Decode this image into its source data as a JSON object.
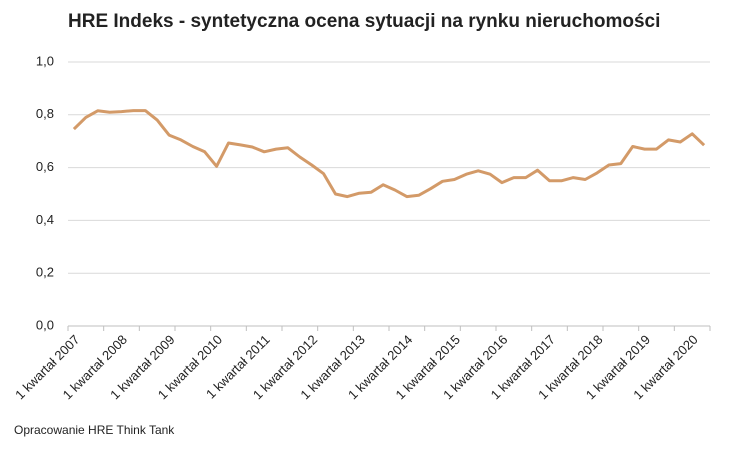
{
  "chart_data": {
    "type": "line",
    "title": "HRE Indeks - syntetyczna ocena sytuacji na rynku nieruchomości",
    "source": "Opracowanie HRE Think Tank",
    "categories": [
      "1 kwartał 2007",
      null,
      null,
      null,
      "1 kwartał 2008",
      null,
      null,
      null,
      "1 kwartał 2009",
      null,
      null,
      null,
      "1 kwartał 2010",
      null,
      null,
      null,
      "1 kwartał 2011",
      null,
      null,
      null,
      "1 kwartał 2012",
      null,
      null,
      null,
      "1 kwartał 2013",
      null,
      null,
      null,
      "1 kwartał 2014",
      null,
      null,
      null,
      "1 kwartał 2015",
      null,
      null,
      null,
      "1 kwartał 2016",
      null,
      null,
      null,
      "1 kwartał 2017",
      null,
      null,
      null,
      "1 kwartał 2018",
      null,
      null,
      null,
      "1 kwartał 2019",
      null,
      null,
      null,
      "1 kwartał 2020",
      null
    ],
    "series": [
      {
        "name": "HRE Indeks",
        "color": "#d39a68",
        "values": [
          0.746,
          0.79,
          0.815,
          0.81,
          0.812,
          0.816,
          0.816,
          0.78,
          0.723,
          0.705,
          0.68,
          0.66,
          0.605,
          0.693,
          0.686,
          0.678,
          0.66,
          0.67,
          0.675,
          0.64,
          0.61,
          0.577,
          0.5,
          0.49,
          0.503,
          0.507,
          0.535,
          0.515,
          0.49,
          0.495,
          0.52,
          0.548,
          0.555,
          0.575,
          0.588,
          0.575,
          0.543,
          0.562,
          0.562,
          0.59,
          0.55,
          0.55,
          0.562,
          0.555,
          0.58,
          0.61,
          0.615,
          0.68,
          0.67,
          0.67,
          0.705,
          0.697,
          0.728,
          0.685
        ]
      }
    ],
    "ylim": [
      0,
      1
    ],
    "yticks": [
      {
        "value": 0,
        "label": "0,0"
      },
      {
        "value": 0.2,
        "label": "0,2"
      },
      {
        "value": 0.4,
        "label": "0,4"
      },
      {
        "value": 0.6,
        "label": "0,6"
      },
      {
        "value": 0.8,
        "label": "0,8"
      },
      {
        "value": 1,
        "label": "1,0"
      }
    ],
    "grid": true
  }
}
